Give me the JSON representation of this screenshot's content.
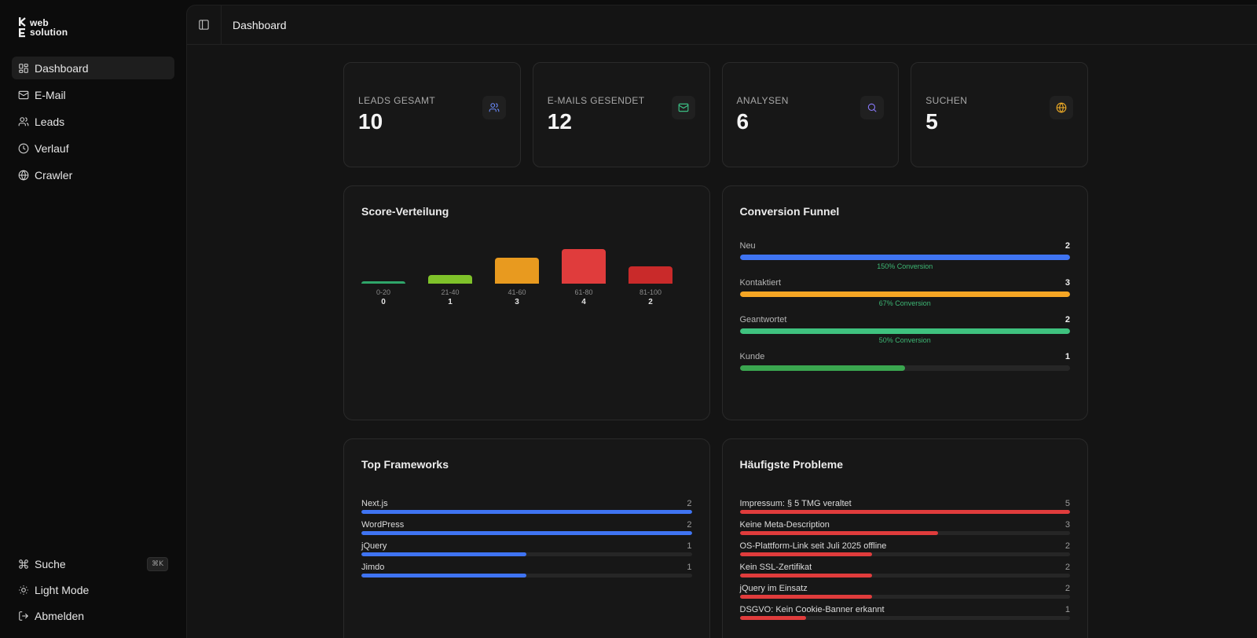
{
  "brand": {
    "line1": "web",
    "line2": "solution"
  },
  "sidebar": {
    "items": [
      {
        "label": "Dashboard",
        "icon": "dashboard-icon",
        "active": true
      },
      {
        "label": "E-Mail",
        "icon": "mail-icon"
      },
      {
        "label": "Leads",
        "icon": "users-icon"
      },
      {
        "label": "Verlauf",
        "icon": "clock-icon"
      },
      {
        "label": "Crawler",
        "icon": "globe-icon"
      }
    ],
    "bottom": [
      {
        "label": "Suche",
        "icon": "command-icon",
        "shortcut": "⌘K"
      },
      {
        "label": "Light Mode",
        "icon": "sun-icon"
      },
      {
        "label": "Abmelden",
        "icon": "logout-icon"
      }
    ]
  },
  "header": {
    "title": "Dashboard"
  },
  "stats": [
    {
      "label": "LEADS GESAMT",
      "value": "10",
      "icon": "users-icon",
      "color": "#6b8cff"
    },
    {
      "label": "E-MAILS GESENDET",
      "value": "12",
      "icon": "mail-icon",
      "color": "#3ecf8e"
    },
    {
      "label": "ANALYSEN",
      "value": "6",
      "icon": "search-icon",
      "color": "#8b7bff"
    },
    {
      "label": "SUCHEN",
      "value": "5",
      "icon": "globe-icon",
      "color": "#f5b026"
    }
  ],
  "score_panel": {
    "title": "Score-Verteilung",
    "chart_data": {
      "type": "bar",
      "categories": [
        "0-20",
        "21-40",
        "41-60",
        "61-80",
        "81-100"
      ],
      "values": [
        0,
        1,
        3,
        4,
        2
      ],
      "colors": [
        "#2fa66a",
        "#7fc22a",
        "#e89a1f",
        "#e03c3c",
        "#c92a2a"
      ]
    }
  },
  "funnel_panel": {
    "title": "Conversion Funnel",
    "stages": [
      {
        "label": "Neu",
        "value": "2",
        "fraction": 1.0,
        "color": "#3f74f2",
        "conversion": "150% Conversion"
      },
      {
        "label": "Kontaktiert",
        "value": "3",
        "fraction": 1.0,
        "color": "#f5a524",
        "conversion": "67% Conversion"
      },
      {
        "label": "Geantwortet",
        "value": "2",
        "fraction": 1.0,
        "color": "#3fc27f",
        "conversion": "50% Conversion"
      },
      {
        "label": "Kunde",
        "value": "1",
        "fraction": 0.5,
        "color": "#3aa64f",
        "conversion": ""
      }
    ]
  },
  "frameworks_panel": {
    "title": "Top Frameworks",
    "items": [
      {
        "label": "Next.js",
        "value": "2",
        "fraction": 1.0
      },
      {
        "label": "WordPress",
        "value": "2",
        "fraction": 1.0
      },
      {
        "label": "jQuery",
        "value": "1",
        "fraction": 0.5
      },
      {
        "label": "Jimdo",
        "value": "1",
        "fraction": 0.5
      }
    ],
    "color": "#3f74f2"
  },
  "problems_panel": {
    "title": "Häufigste Probleme",
    "items": [
      {
        "label": "Impressum: § 5 TMG veraltet",
        "value": "5",
        "fraction": 1.0
      },
      {
        "label": "Keine Meta-Description",
        "value": "3",
        "fraction": 0.6
      },
      {
        "label": "OS-Plattform-Link seit Juli 2025 offline",
        "value": "2",
        "fraction": 0.4
      },
      {
        "label": "Kein SSL-Zertifikat",
        "value": "2",
        "fraction": 0.4
      },
      {
        "label": "jQuery im Einsatz",
        "value": "2",
        "fraction": 0.4
      },
      {
        "label": "DSGVO: Kein Cookie-Banner erkannt",
        "value": "1",
        "fraction": 0.2
      }
    ],
    "color": "#e03c3c"
  }
}
